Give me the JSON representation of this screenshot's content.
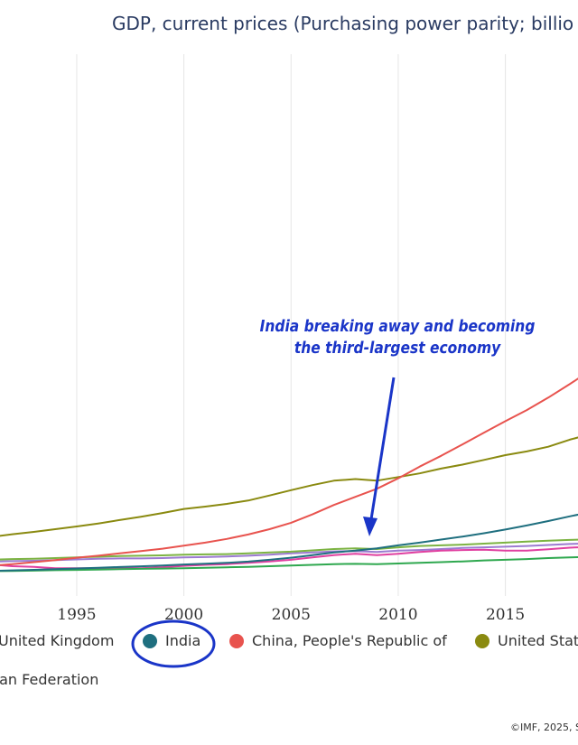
{
  "title": "GDP, current prices (Purchasing power parity; billio",
  "annotation": {
    "line1": "India breaking away and becoming",
    "line2": "the third-largest economy"
  },
  "legend": [
    {
      "name": "United Kingdom",
      "color": "#2fa84f",
      "dot": false
    },
    {
      "name": "India",
      "color": "#1f6f7f",
      "dot": true,
      "circled": true
    },
    {
      "name": "China, People's Republic of",
      "color": "#e8534e",
      "dot": true
    },
    {
      "name": "United Stat",
      "color": "#8a8a10",
      "dot": true
    }
  ],
  "legend_row2": "ssian Federation",
  "credit": "©IMF, 2025, S",
  "colors": {
    "annotation": "#1a35c8",
    "usa": "#8a8a10",
    "china": "#e8534e",
    "india": "#1f6f7f",
    "uk": "#2fa84f",
    "russia": "#e040a0",
    "germany": "#7cb342",
    "japan": "#9c7bd1"
  },
  "chart_data": {
    "type": "line",
    "title": "GDP, current prices (Purchasing power parity; billio",
    "xlabel": "",
    "ylabel": "",
    "x_ticks": [
      1995,
      2000,
      2005,
      2010,
      2015,
      "20"
    ],
    "x_range": [
      1991,
      2021
    ],
    "grid": "vertical",
    "legend_position": "bottom",
    "series": [
      {
        "name": "United Stat",
        "key": "usa",
        "x": [
          1991,
          1992,
          1993,
          1994,
          1995,
          1996,
          1997,
          1998,
          1999,
          2000,
          2001,
          2002,
          2003,
          2004,
          2005,
          2006,
          2007,
          2008,
          2009,
          2010,
          2011,
          2012,
          2013,
          2014,
          2015,
          2016,
          2017,
          2018,
          2019,
          2020,
          2021
        ],
        "y": [
          6100,
          6500,
          6850,
          7250,
          7650,
          8100,
          8600,
          9100,
          9650,
          10250,
          10600,
          11000,
          11500,
          12250,
          13050,
          13800,
          14450,
          14700,
          14450,
          15000,
          15550,
          16250,
          16850,
          17550,
          18250,
          18800,
          19500,
          20550,
          21400,
          21300,
          21300
        ]
      },
      {
        "name": "China, People's Republic of",
        "key": "china",
        "x": [
          1991,
          1992,
          1993,
          1994,
          1995,
          1996,
          1997,
          1998,
          1999,
          2000,
          2001,
          2002,
          2003,
          2004,
          2005,
          2006,
          2007,
          2008,
          2009,
          2010,
          2011,
          2012,
          2013,
          2014,
          2015,
          2016,
          2017,
          2018,
          2019,
          2020
        ],
        "y": [
          1800,
          2050,
          2350,
          2650,
          3000,
          3300,
          3650,
          4000,
          4350,
          4800,
          5250,
          5800,
          6450,
          7250,
          8200,
          9450,
          10850,
          12050,
          13250,
          14800,
          16550,
          18150,
          19850,
          21600,
          23300,
          24950,
          26800,
          28800,
          30900,
          31800
        ]
      },
      {
        "name": "India",
        "key": "india",
        "x": [
          1991,
          1992,
          1993,
          1994,
          1995,
          1996,
          1997,
          1998,
          1999,
          2000,
          2001,
          2002,
          2003,
          2004,
          2005,
          2006,
          2007,
          2008,
          2009,
          2010,
          2011,
          2012,
          2013,
          2014,
          2015,
          2016,
          2017,
          2018,
          2019,
          2020,
          2021
        ],
        "y": [
          1050,
          1130,
          1210,
          1300,
          1410,
          1520,
          1620,
          1730,
          1850,
          2000,
          2110,
          2240,
          2430,
          2700,
          3000,
          3380,
          3800,
          4050,
          4400,
          4850,
          5250,
          5700,
          6150,
          6650,
          7200,
          7800,
          8450,
          9150,
          9800,
          9500,
          9500
        ]
      },
      {
        "name": "United Kingdom",
        "key": "uk",
        "x": [
          1991,
          1992,
          1993,
          1994,
          1995,
          1996,
          1997,
          1998,
          1999,
          2000,
          2001,
          2002,
          2003,
          2004,
          2005,
          2006,
          2007,
          2008,
          2009,
          2010,
          2011,
          2012,
          2013,
          2014,
          2015,
          2016,
          2017,
          2018,
          2019,
          2020
        ],
        "y": [
          1000,
          1050,
          1090,
          1150,
          1200,
          1250,
          1300,
          1350,
          1400,
          1450,
          1520,
          1580,
          1650,
          1750,
          1850,
          1950,
          2050,
          2100,
          2050,
          2150,
          2250,
          2350,
          2450,
          2600,
          2700,
          2800,
          2950,
          3050,
          3150,
          3000
        ]
      },
      {
        "name": "ssian Federation",
        "key": "russia",
        "x": [
          1991,
          1992,
          1993,
          1994,
          1995,
          1996,
          1997,
          1998,
          1999,
          2000,
          2001,
          2002,
          2003,
          2004,
          2005,
          2006,
          2007,
          2008,
          2009,
          2010,
          2011,
          2012,
          2013,
          2014,
          2015,
          2016,
          2017,
          2018,
          2019,
          2020
        ],
        "y": [
          2000,
          1750,
          1650,
          1450,
          1450,
          1450,
          1500,
          1450,
          1600,
          1800,
          1950,
          2050,
          2250,
          2450,
          2700,
          3050,
          3400,
          3600,
          3400,
          3600,
          3850,
          4050,
          4150,
          4200,
          4050,
          4050,
          4250,
          4500,
          4650,
          4500
        ]
      },
      {
        "name": "",
        "key": "germany",
        "x": [
          1991,
          1992,
          1993,
          1994,
          1995,
          1996,
          1997,
          1998,
          1999,
          2000,
          2001,
          2002,
          2003,
          2004,
          2005,
          2006,
          2007,
          2008,
          2009,
          2010,
          2011,
          2012,
          2013,
          2014,
          2015,
          2016,
          2017,
          2018,
          2019,
          2020
        ],
        "y": [
          2700,
          2800,
          2850,
          2950,
          3050,
          3150,
          3250,
          3300,
          3350,
          3450,
          3500,
          3550,
          3650,
          3800,
          3900,
          4100,
          4300,
          4400,
          4300,
          4550,
          4750,
          4850,
          4950,
          5100,
          5250,
          5400,
          5550,
          5650,
          5750,
          5700
        ]
      },
      {
        "name": "",
        "key": "japan",
        "x": [
          1991,
          1992,
          1993,
          1994,
          1995,
          1996,
          1997,
          1998,
          1999,
          2000,
          2001,
          2002,
          2003,
          2004,
          2005,
          2006,
          2007,
          2008,
          2009,
          2010,
          2011,
          2012,
          2013,
          2014,
          2015,
          2016,
          2017,
          2018,
          2019,
          2020
        ],
        "y": [
          2400,
          2500,
          2550,
          2650,
          2750,
          2850,
          2900,
          2900,
          2950,
          3050,
          3100,
          3200,
          3300,
          3450,
          3650,
          3800,
          3950,
          4000,
          3850,
          4050,
          4150,
          4300,
          4450,
          4550,
          4650,
          4750,
          4900,
          5050,
          5150,
          5100
        ]
      }
    ]
  }
}
